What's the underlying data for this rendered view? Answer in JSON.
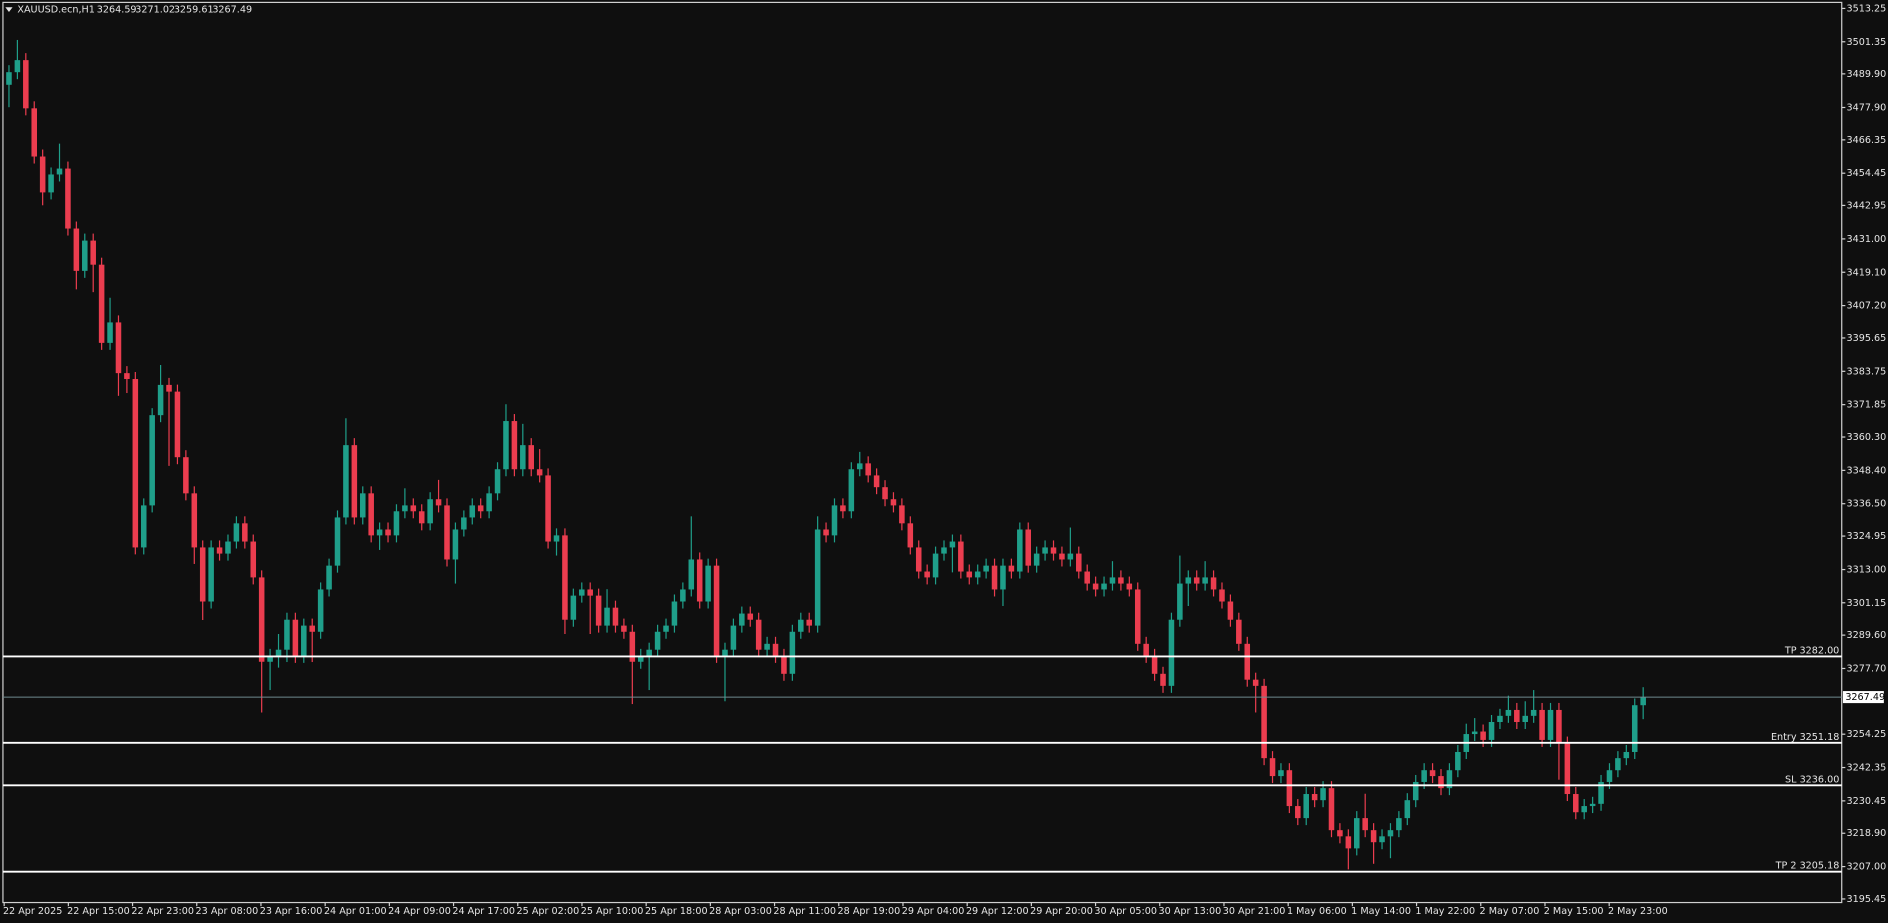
{
  "chart_data": {
    "type": "candlestick",
    "title": "XAUUSD.ecn,H1",
    "colors": {
      "up": "#1f9f8a",
      "down": "#eb3d4f",
      "background": "#0f0f0f",
      "level": "#ffffff",
      "price_line": "#6f8a8f"
    },
    "ylim": [
      3194.17,
      3515.4
    ],
    "yticks": [
      3513.25,
      3501.35,
      {
        "value": 3489.9,
        "label": "3489.90"
      },
      {
        "value": 3477.9,
        "label": "3477.90"
      },
      3466.35,
      3454.45,
      3442.95,
      {
        "value": 3431.0,
        "label": "3431.00"
      },
      {
        "value": 3419.1,
        "label": "3419.10"
      },
      {
        "value": 3407.2,
        "label": "3407.20"
      },
      3395.65,
      3383.75,
      3371.85,
      {
        "value": 3360.3,
        "label": "3360.30"
      },
      {
        "value": 3348.4,
        "label": "3348.40"
      },
      {
        "value": 3336.5,
        "label": "3336.50"
      },
      3324.95,
      {
        "value": 3313.0,
        "label": "3313.00"
      },
      3301.15,
      {
        "value": 3289.6,
        "label": "3289.60"
      },
      {
        "value": 3277.7,
        "label": "3277.70"
      },
      3254.25,
      3242.35,
      3230.45,
      {
        "value": 3218.9,
        "label": "3218.90"
      },
      {
        "value": 3207.0,
        "label": "3207.00"
      },
      3195.45
    ],
    "time_labels": [
      "22 Apr 2025",
      "22 Apr 15:00",
      "22 Apr 23:00",
      "23 Apr 08:00",
      "23 Apr 16:00",
      "24 Apr 01:00",
      "24 Apr 09:00",
      "24 Apr 17:00",
      "25 Apr 02:00",
      "25 Apr 10:00",
      "25 Apr 18:00",
      "28 Apr 03:00",
      "28 Apr 11:00",
      "28 Apr 19:00",
      "29 Apr 04:00",
      "29 Apr 12:00",
      "29 Apr 20:00",
      "30 Apr 05:00",
      "30 Apr 13:00",
      "30 Apr 21:00",
      "1 May 06:00",
      "1 May 14:00",
      "1 May 22:00",
      "2 May 07:00",
      "2 May 15:00",
      "2 May 23:00"
    ],
    "levels": [
      {
        "label": "TP 3282.00",
        "value": 3282.0
      },
      {
        "label": "Entry 3251.18",
        "value": 3251.18
      },
      {
        "label": "SL 3236.00",
        "value": 3236.0
      },
      {
        "label": "TP 2 3205.18",
        "value": 3205.18
      }
    ],
    "open": [
      3486.0,
      3490.5,
      3494.8,
      3477.6,
      3460.4,
      3447.6,
      3454.0,
      3456.1,
      3434.7,
      3419.6,
      3430.4,
      3421.8,
      3393.9,
      3401.2,
      3383.1,
      3381.0,
      3320.9,
      3335.9,
      3368.1,
      3378.9,
      3376.5,
      3353.1,
      3340.2,
      3320.9,
      3301.6,
      3320.9,
      3318.7,
      3323.0,
      3329.5,
      3323.0,
      3310.2,
      3280.1,
      3282.2,
      3284.4,
      3295.1,
      3282.2,
      3293.0,
      3290.8,
      3305.9,
      3314.4,
      3331.6,
      3357.4,
      3331.6,
      3340.2,
      3325.2,
      3327.3,
      3325.2,
      3333.8,
      3335.9,
      3333.8,
      3329.5,
      3338.1,
      3335.9,
      3316.6,
      3327.3,
      3331.6,
      3335.9,
      3333.8,
      3340.2,
      3348.8,
      3366.0,
      3348.8,
      3357.4,
      3348.8,
      3346.6,
      3323.0,
      3325.2,
      3295.1,
      3303.7,
      3305.9,
      3303.7,
      3293.0,
      3299.4,
      3293.0,
      3290.8,
      3280.1,
      3282.2,
      3284.4,
      3290.8,
      3293.0,
      3301.6,
      3305.9,
      3316.6,
      3301.6,
      3314.4,
      3282.2,
      3284.4,
      3293.0,
      3297.3,
      3295.1,
      3284.4,
      3286.5,
      3282.2,
      3275.8,
      3290.8,
      3295.1,
      3293.0,
      3327.3,
      3325.2,
      3335.9,
      3333.8,
      3348.8,
      3350.9,
      3346.6,
      3342.4,
      3338.1,
      3335.9,
      3329.5,
      3320.9,
      3312.3,
      3310.2,
      3318.7,
      3320.9,
      3323.0,
      3312.3,
      3310.2,
      3312.3,
      3314.4,
      3305.9,
      3314.4,
      3312.3,
      3327.3,
      3314.4,
      3318.7,
      3320.9,
      3318.7,
      3316.6,
      3318.7,
      3312.3,
      3308.0,
      3305.9,
      3308.0,
      3310.2,
      3308.0,
      3305.9,
      3286.5,
      3282.2,
      3275.8,
      3271.5,
      3295.1,
      3308.0,
      3310.2,
      3308.0,
      3310.2,
      3305.9,
      3301.6,
      3295.1,
      3286.5,
      3273.7,
      3271.5,
      3245.7,
      3239.3,
      3241.4,
      3228.6,
      3224.3,
      3232.9,
      3230.7,
      3235.0,
      3220.0,
      3217.8,
      3213.5,
      3224.3,
      3220.0,
      3215.7,
      3217.8,
      3220.0,
      3224.3,
      3230.7,
      3237.2,
      3241.4,
      3239.3,
      3235.0,
      3241.4,
      3247.9,
      3254.3,
      3255.2,
      3252.2,
      3258.6,
      3260.8,
      3262.9,
      3258.6,
      3260.8,
      3262.9,
      3252.2,
      3262.9,
      3250.9,
      3232.9,
      3226.4,
      3228.6,
      3229.4,
      3237.2,
      3241.4,
      3245.7,
      3247.9,
      3264.59
    ],
    "high": [
      3493.0,
      3502.0,
      3497.3,
      3480.1,
      3462.9,
      3456.5,
      3465.0,
      3458.6,
      3437.2,
      3432.9,
      3432.9,
      3424.3,
      3410.0,
      3403.7,
      3385.6,
      3383.5,
      3338.4,
      3370.6,
      3386.0,
      3381.4,
      3379.0,
      3355.6,
      3342.7,
      3323.4,
      3323.4,
      3323.4,
      3325.5,
      3332.0,
      3332.0,
      3325.5,
      3312.7,
      3284.7,
      3290.0,
      3297.6,
      3297.6,
      3295.5,
      3295.5,
      3308.4,
      3316.9,
      3334.1,
      3367.0,
      3359.9,
      3342.7,
      3342.7,
      3329.8,
      3329.8,
      3336.3,
      3342.0,
      3338.4,
      3336.3,
      3340.6,
      3345.0,
      3338.4,
      3329.8,
      3334.1,
      3338.4,
      3338.4,
      3342.7,
      3351.3,
      3372.0,
      3368.5,
      3365.0,
      3359.9,
      3356.0,
      3349.1,
      3327.7,
      3327.7,
      3306.2,
      3308.4,
      3308.4,
      3306.2,
      3306.0,
      3301.9,
      3295.5,
      3293.3,
      3284.7,
      3286.9,
      3293.3,
      3295.5,
      3304.1,
      3308.4,
      3332.0,
      3319.1,
      3316.9,
      3316.9,
      3286.9,
      3295.5,
      3299.8,
      3299.8,
      3297.6,
      3289.0,
      3289.0,
      3284.7,
      3293.3,
      3297.6,
      3297.6,
      3332.0,
      3329.8,
      3338.4,
      3338.4,
      3351.3,
      3355.0,
      3353.4,
      3349.1,
      3344.9,
      3340.6,
      3338.4,
      3332.0,
      3323.4,
      3314.8,
      3321.2,
      3323.4,
      3325.5,
      3325.5,
      3314.8,
      3314.8,
      3316.9,
      3316.9,
      3316.9,
      3316.9,
      3329.8,
      3329.8,
      3321.2,
      3323.4,
      3323.4,
      3321.2,
      3328.0,
      3321.2,
      3314.8,
      3310.5,
      3310.5,
      3316.0,
      3312.7,
      3310.5,
      3308.4,
      3289.0,
      3284.7,
      3278.3,
      3297.6,
      3318.0,
      3312.7,
      3312.7,
      3316.0,
      3312.7,
      3308.4,
      3304.1,
      3297.6,
      3289.0,
      3276.2,
      3274.0,
      3248.2,
      3243.9,
      3243.9,
      3231.1,
      3235.4,
      3235.4,
      3237.5,
      3237.5,
      3222.5,
      3220.3,
      3226.8,
      3233.0,
      3222.5,
      3220.3,
      3222.5,
      3226.8,
      3233.2,
      3239.7,
      3243.9,
      3243.9,
      3241.8,
      3243.9,
      3250.4,
      3258.0,
      3260.0,
      3257.7,
      3261.1,
      3263.3,
      3268.0,
      3265.4,
      3266.0,
      3270.0,
      3265.4,
      3265.4,
      3265.4,
      3253.4,
      3235.4,
      3231.1,
      3231.9,
      3239.7,
      3243.9,
      3248.2,
      3250.4,
      3267.0,
      3271.02
    ],
    "low": [
      3478.0,
      3488.0,
      3475.1,
      3457.9,
      3443.0,
      3445.1,
      3451.5,
      3432.2,
      3413.0,
      3417.1,
      3412.0,
      3391.4,
      3391.4,
      3375.0,
      3376.0,
      3318.4,
      3318.4,
      3333.4,
      3365.6,
      3350.0,
      3350.6,
      3337.7,
      3315.0,
      3295.0,
      3299.1,
      3316.2,
      3316.2,
      3320.5,
      3320.5,
      3307.7,
      3262.0,
      3270.0,
      3278.0,
      3280.0,
      3279.7,
      3279.7,
      3280.0,
      3288.3,
      3303.4,
      3311.9,
      3329.1,
      3329.1,
      3329.1,
      3322.7,
      3320.0,
      3322.7,
      3322.7,
      3331.3,
      3331.3,
      3327.0,
      3327.0,
      3333.4,
      3314.1,
      3308.0,
      3324.8,
      3329.1,
      3331.3,
      3331.3,
      3337.7,
      3346.3,
      3346.3,
      3346.3,
      3346.3,
      3344.1,
      3320.5,
      3318.0,
      3290.0,
      3292.6,
      3301.2,
      3290.0,
      3290.5,
      3290.5,
      3290.5,
      3288.3,
      3265.0,
      3277.6,
      3270.0,
      3281.9,
      3288.3,
      3290.5,
      3299.1,
      3303.4,
      3299.1,
      3299.1,
      3279.7,
      3266.0,
      3281.9,
      3290.5,
      3292.6,
      3281.9,
      3281.9,
      3279.7,
      3273.3,
      3273.3,
      3288.3,
      3290.5,
      3290.5,
      3322.7,
      3322.7,
      3331.3,
      3331.3,
      3346.3,
      3344.1,
      3339.9,
      3335.6,
      3333.4,
      3327.0,
      3318.4,
      3309.8,
      3307.7,
      3307.7,
      3316.2,
      3312.0,
      3309.8,
      3307.7,
      3307.7,
      3309.8,
      3303.4,
      3300.0,
      3309.8,
      3309.8,
      3311.9,
      3311.9,
      3316.2,
      3316.2,
      3314.1,
      3314.1,
      3309.8,
      3305.5,
      3303.4,
      3303.4,
      3305.5,
      3305.5,
      3303.4,
      3284.0,
      3279.7,
      3273.3,
      3269.0,
      3269.0,
      3292.6,
      3300.0,
      3305.5,
      3305.5,
      3303.4,
      3299.1,
      3292.6,
      3284.0,
      3271.2,
      3262.0,
      3243.2,
      3236.8,
      3236.8,
      3226.1,
      3221.8,
      3221.8,
      3228.2,
      3228.2,
      3217.5,
      3215.3,
      3206.0,
      3211.0,
      3217.5,
      3208.0,
      3213.2,
      3210.0,
      3217.5,
      3221.8,
      3228.2,
      3234.7,
      3236.8,
      3232.5,
      3232.5,
      3238.9,
      3245.4,
      3251.8,
      3249.7,
      3249.7,
      3256.1,
      3258.3,
      3256.1,
      3256.1,
      3258.3,
      3249.7,
      3249.7,
      3238.0,
      3230.4,
      3223.9,
      3223.9,
      3226.1,
      3226.9,
      3234.7,
      3238.9,
      3243.2,
      3245.4,
      3259.61
    ],
    "close": [
      3490.5,
      3494.8,
      3477.6,
      3460.4,
      3447.6,
      3454.0,
      3456.1,
      3434.7,
      3419.6,
      3430.4,
      3421.8,
      3393.9,
      3401.2,
      3383.1,
      3381.0,
      3320.9,
      3335.9,
      3368.1,
      3378.9,
      3376.5,
      3353.1,
      3340.2,
      3320.9,
      3301.6,
      3320.9,
      3318.7,
      3323.0,
      3329.5,
      3323.0,
      3310.2,
      3280.1,
      3282.2,
      3284.4,
      3295.1,
      3282.2,
      3293.0,
      3290.8,
      3305.9,
      3314.4,
      3331.6,
      3357.4,
      3331.6,
      3340.2,
      3325.2,
      3327.3,
      3325.2,
      3333.8,
      3335.9,
      3333.8,
      3329.5,
      3338.1,
      3335.9,
      3316.6,
      3327.3,
      3331.6,
      3335.9,
      3333.8,
      3340.2,
      3348.8,
      3366.0,
      3348.8,
      3357.4,
      3348.8,
      3346.6,
      3323.0,
      3325.2,
      3295.1,
      3303.7,
      3305.9,
      3303.7,
      3293.0,
      3299.4,
      3293.0,
      3290.8,
      3280.1,
      3282.2,
      3284.4,
      3290.8,
      3293.0,
      3301.6,
      3305.9,
      3316.6,
      3301.6,
      3314.4,
      3282.2,
      3284.4,
      3293.0,
      3297.3,
      3295.1,
      3284.4,
      3286.5,
      3282.2,
      3275.8,
      3290.8,
      3295.1,
      3293.0,
      3327.3,
      3325.2,
      3335.9,
      3333.8,
      3348.8,
      3350.9,
      3346.6,
      3342.4,
      3338.1,
      3335.9,
      3329.5,
      3320.9,
      3312.3,
      3310.2,
      3318.7,
      3320.9,
      3323.0,
      3312.3,
      3310.2,
      3312.3,
      3314.4,
      3305.9,
      3314.4,
      3312.3,
      3327.3,
      3314.4,
      3318.7,
      3320.9,
      3318.7,
      3316.6,
      3318.7,
      3312.3,
      3308.0,
      3305.9,
      3308.0,
      3310.2,
      3308.0,
      3305.9,
      3286.5,
      3282.2,
      3275.8,
      3271.5,
      3295.1,
      3308.0,
      3310.2,
      3308.0,
      3310.2,
      3305.9,
      3301.6,
      3295.1,
      3286.5,
      3273.7,
      3271.5,
      3245.7,
      3239.3,
      3241.4,
      3228.6,
      3224.3,
      3232.9,
      3230.7,
      3235.0,
      3220.0,
      3217.8,
      3213.5,
      3224.3,
      3220.0,
      3215.7,
      3217.8,
      3220.0,
      3224.3,
      3230.7,
      3237.2,
      3241.4,
      3239.3,
      3235.0,
      3241.4,
      3247.9,
      3254.3,
      3255.2,
      3252.2,
      3258.6,
      3260.8,
      3262.9,
      3258.6,
      3260.8,
      3262.9,
      3252.2,
      3262.9,
      3250.9,
      3232.9,
      3226.4,
      3228.6,
      3229.4,
      3237.2,
      3241.4,
      3245.7,
      3247.9,
      3264.59,
      3267.49
    ]
  }
}
